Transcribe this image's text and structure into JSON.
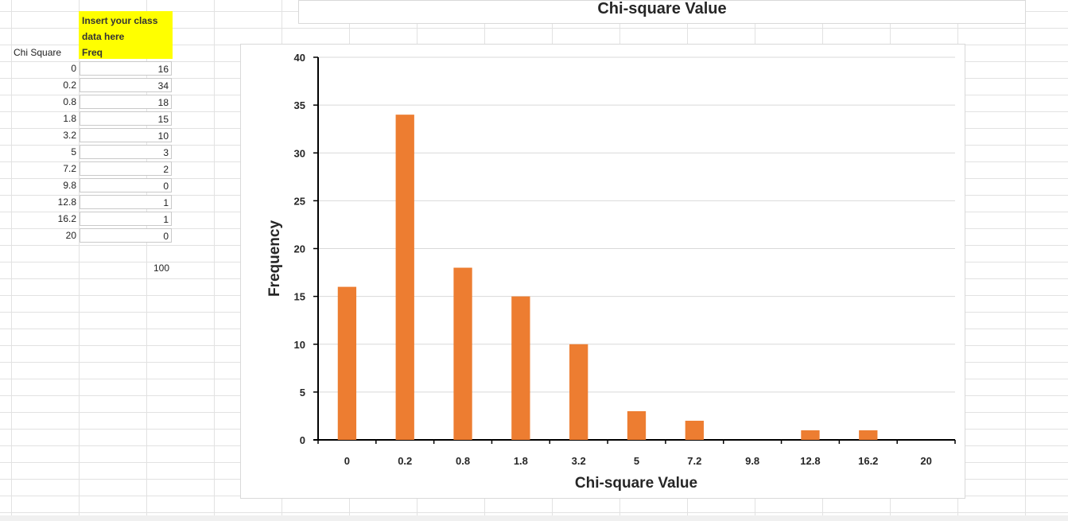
{
  "sheet": {
    "header_lines": [
      "Insert your class",
      "data here",
      "Freq"
    ],
    "col_a_header": "Chi Square",
    "rows": [
      {
        "chi": "0",
        "freq": "16"
      },
      {
        "chi": "0.2",
        "freq": "34"
      },
      {
        "chi": "0.8",
        "freq": "18"
      },
      {
        "chi": "1.8",
        "freq": "15"
      },
      {
        "chi": "3.2",
        "freq": "10"
      },
      {
        "chi": "5",
        "freq": "3"
      },
      {
        "chi": "7.2",
        "freq": "2"
      },
      {
        "chi": "9.8",
        "freq": "0"
      },
      {
        "chi": "12.8",
        "freq": "1"
      },
      {
        "chi": "16.2",
        "freq": "1"
      },
      {
        "chi": "20",
        "freq": "0"
      }
    ],
    "total": "100",
    "header_color": "#ffff00"
  },
  "chart_data": {
    "type": "bar",
    "title": "Chi-square Value",
    "xlabel": "Chi-square Value",
    "ylabel": "Frequency",
    "categories": [
      "0",
      "0.2",
      "0.8",
      "1.8",
      "3.2",
      "5",
      "7.2",
      "9.8",
      "12.8",
      "16.2",
      "20"
    ],
    "values": [
      16,
      34,
      18,
      15,
      10,
      3,
      2,
      0,
      1,
      1,
      0
    ],
    "ylim": [
      0,
      40
    ],
    "yticks": [
      0,
      5,
      10,
      15,
      20,
      25,
      30,
      35,
      40
    ],
    "grid": true,
    "legend": "none",
    "bar_color": "#ed7d31"
  }
}
